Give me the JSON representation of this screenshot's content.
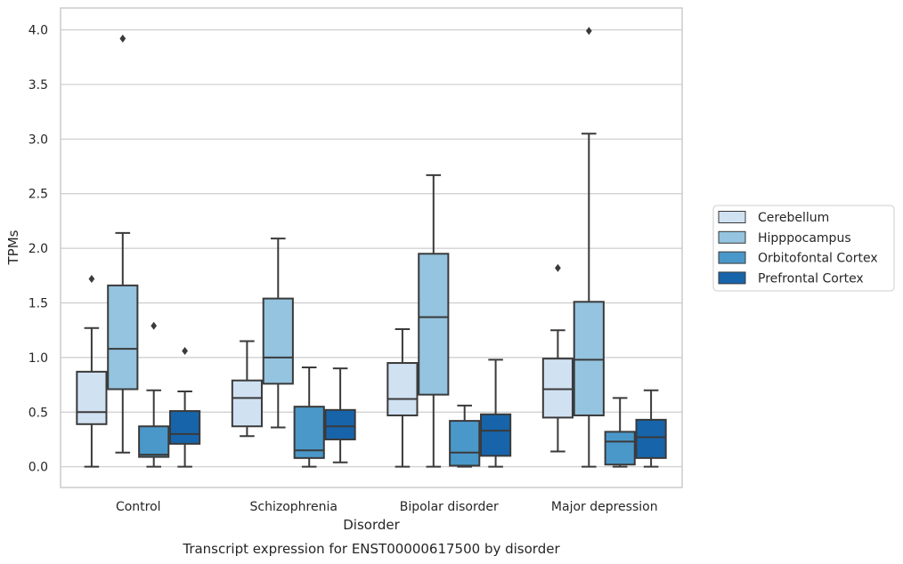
{
  "chart_data": {
    "type": "box",
    "caption": "Transcript expression for ENST00000617500 by disorder",
    "xlabel": "Disorder",
    "ylabel": "TPMs",
    "ylim": [
      -0.19,
      4.2
    ],
    "yticks": [
      "0.0",
      "0.5",
      "1.0",
      "1.5",
      "2.0",
      "2.5",
      "3.0",
      "3.5",
      "4.0"
    ],
    "ytick_values": [
      0,
      0.5,
      1.0,
      1.5,
      2.0,
      2.5,
      3.0,
      3.5,
      4.0
    ],
    "grid": "horizontal",
    "legend_position": "right",
    "categories": [
      "Control",
      "Schizophrenia",
      "Bipolar disorder",
      "Major depression"
    ],
    "series": [
      {
        "name": "Cerebellum",
        "color": "#d0e1f2",
        "boxes": [
          {
            "whisker_low": 0.0,
            "q1": 0.39,
            "median": 0.5,
            "q3": 0.87,
            "whisker_high": 1.27,
            "outliers": [
              1.72
            ]
          },
          {
            "whisker_low": 0.28,
            "q1": 0.37,
            "median": 0.63,
            "q3": 0.79,
            "whisker_high": 1.15,
            "outliers": []
          },
          {
            "whisker_low": 0.0,
            "q1": 0.47,
            "median": 0.62,
            "q3": 0.95,
            "whisker_high": 1.26,
            "outliers": []
          },
          {
            "whisker_low": 0.14,
            "q1": 0.45,
            "median": 0.71,
            "q3": 0.99,
            "whisker_high": 1.25,
            "outliers": [
              1.82
            ]
          }
        ]
      },
      {
        "name": "Hipppocampus",
        "color": "#94c4df",
        "boxes": [
          {
            "whisker_low": 0.13,
            "q1": 0.71,
            "median": 1.08,
            "q3": 1.66,
            "whisker_high": 2.14,
            "outliers": [
              3.92
            ]
          },
          {
            "whisker_low": 0.36,
            "q1": 0.76,
            "median": 1.0,
            "q3": 1.54,
            "whisker_high": 2.09,
            "outliers": []
          },
          {
            "whisker_low": 0.0,
            "q1": 0.66,
            "median": 1.37,
            "q3": 1.95,
            "whisker_high": 2.67,
            "outliers": []
          },
          {
            "whisker_low": 0.0,
            "q1": 0.47,
            "median": 0.98,
            "q3": 1.51,
            "whisker_high": 3.05,
            "outliers": [
              3.99
            ]
          }
        ]
      },
      {
        "name": "Orbitofontal Cortex",
        "color": "#4a98c9",
        "boxes": [
          {
            "whisker_low": 0.0,
            "q1": 0.09,
            "median": 0.11,
            "q3": 0.37,
            "whisker_high": 0.7,
            "outliers": [
              1.29
            ]
          },
          {
            "whisker_low": 0.0,
            "q1": 0.08,
            "median": 0.15,
            "q3": 0.55,
            "whisker_high": 0.91,
            "outliers": []
          },
          {
            "whisker_low": 0.0,
            "q1": 0.01,
            "median": 0.13,
            "q3": 0.42,
            "whisker_high": 0.56,
            "outliers": []
          },
          {
            "whisker_low": 0.0,
            "q1": 0.02,
            "median": 0.23,
            "q3": 0.32,
            "whisker_high": 0.63,
            "outliers": []
          }
        ]
      },
      {
        "name": "Prefrontal Cortex",
        "color": "#1764ab",
        "boxes": [
          {
            "whisker_low": 0.0,
            "q1": 0.21,
            "median": 0.3,
            "q3": 0.51,
            "whisker_high": 0.69,
            "outliers": [
              1.06
            ]
          },
          {
            "whisker_low": 0.04,
            "q1": 0.25,
            "median": 0.37,
            "q3": 0.52,
            "whisker_high": 0.9,
            "outliers": []
          },
          {
            "whisker_low": 0.0,
            "q1": 0.1,
            "median": 0.33,
            "q3": 0.48,
            "whisker_high": 0.98,
            "outliers": []
          },
          {
            "whisker_low": 0.0,
            "q1": 0.08,
            "median": 0.27,
            "q3": 0.43,
            "whisker_high": 0.7,
            "outliers": []
          }
        ]
      }
    ]
  }
}
